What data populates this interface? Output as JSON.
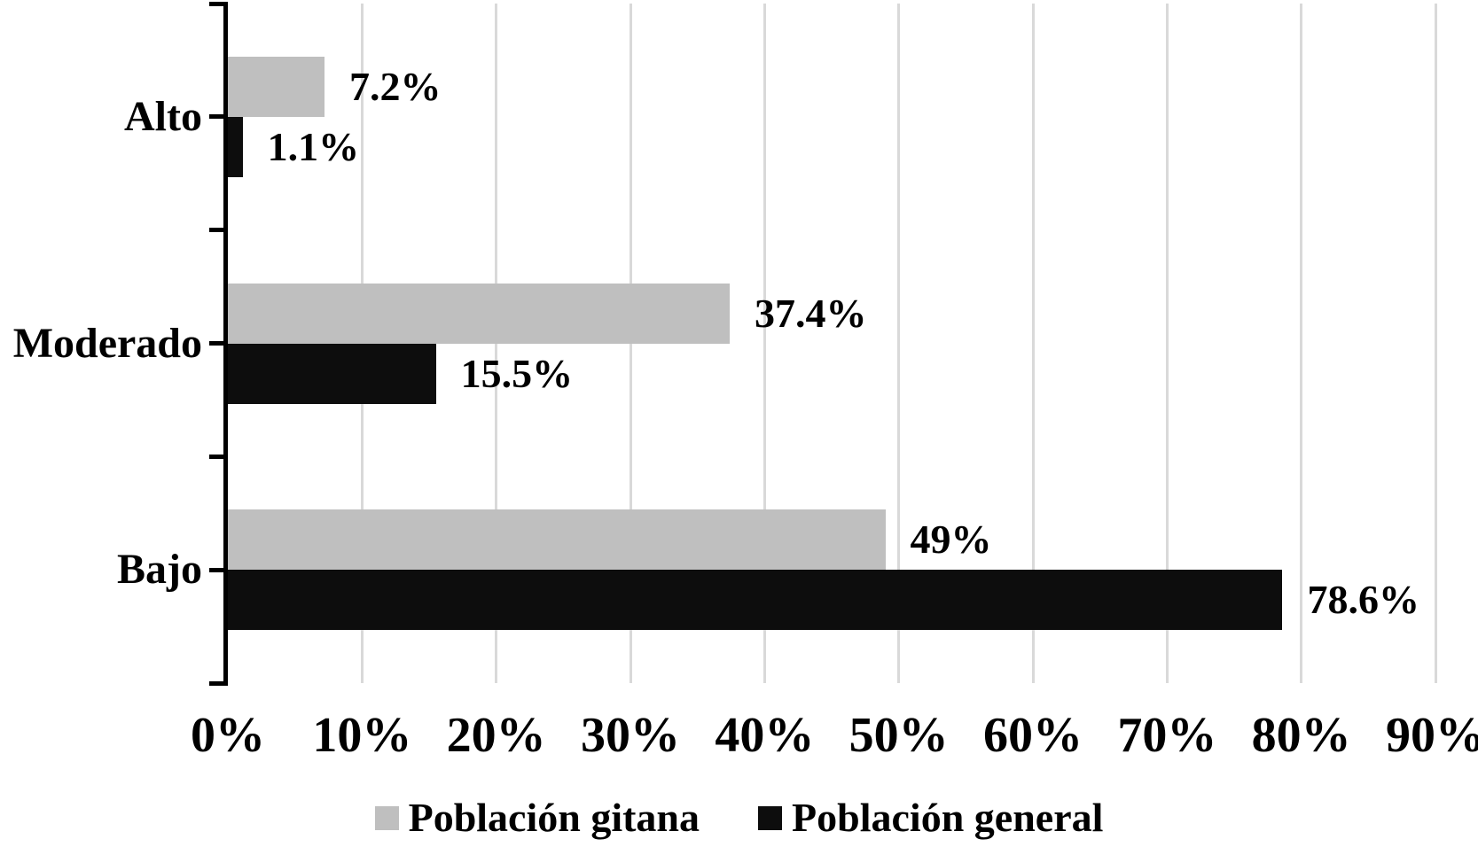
{
  "chart_data": {
    "type": "bar",
    "orientation": "horizontal",
    "title": "",
    "xlabel": "",
    "ylabel": "",
    "categories": [
      "Alto",
      "Moderado",
      "Bajo"
    ],
    "series": [
      {
        "name": "Población gitana",
        "color": "#bfbfbf",
        "values": [
          7.2,
          37.4,
          49
        ],
        "value_labels": [
          "7.2%",
          "37.4%",
          "49%"
        ]
      },
      {
        "name": "Población general",
        "color": "#0d0d0d",
        "values": [
          1.1,
          15.5,
          78.6
        ],
        "value_labels": [
          "1.1%",
          "15.5%",
          "78.6%"
        ]
      }
    ],
    "x_axis": {
      "min": 0,
      "max": 90,
      "tick_step": 10,
      "unit": "%",
      "tick_labels": [
        "0%",
        "10%",
        "20%",
        "30%",
        "40%",
        "50%",
        "60%",
        "70%",
        "80%",
        "90%"
      ]
    },
    "grid": true,
    "legend_position": "bottom",
    "colors": {
      "gridline": "#d9d9d9",
      "axis": "#000000",
      "background": "#ffffff",
      "text": "#000000"
    }
  }
}
